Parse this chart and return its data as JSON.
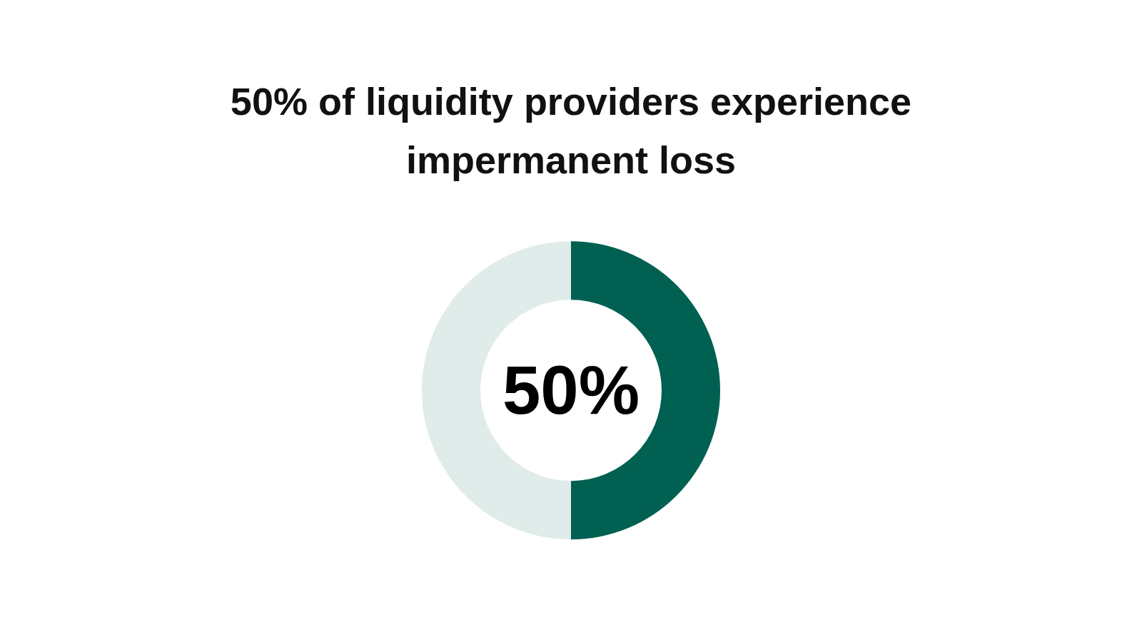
{
  "chart_data": {
    "type": "donut",
    "title": "50% of liquidity providers experience\nimpermanent loss",
    "categories": [
      null,
      null
    ],
    "values": [
      50,
      50
    ],
    "colors": [
      "#006052",
      "#e0ecea"
    ],
    "annotations": [
      "50%"
    ]
  }
}
